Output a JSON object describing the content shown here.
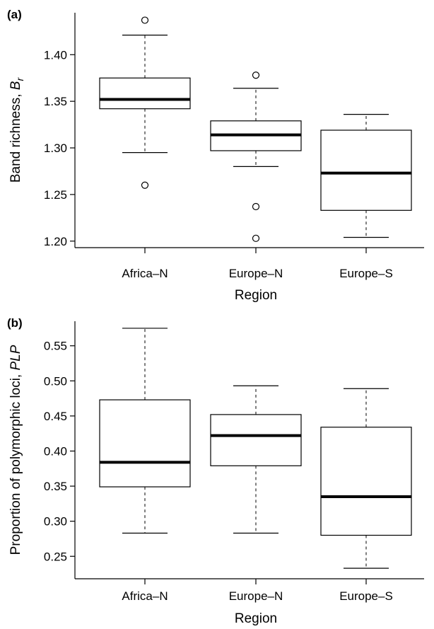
{
  "chart_data": [
    {
      "panel_label": "(a)",
      "type": "boxplot",
      "xlabel": "Region",
      "ylabel": "Band richness, ",
      "ylabel_symbol": "B",
      "ylabel_subscript": "r",
      "categories": [
        "Africa–N",
        "Europe–N",
        "Europe–S"
      ],
      "ylim": [
        1.193,
        1.445
      ],
      "yticks": [
        1.2,
        1.25,
        1.3,
        1.35,
        1.4
      ],
      "ytick_labels": [
        "1.20",
        "1.25",
        "1.30",
        "1.35",
        "1.40"
      ],
      "boxes": [
        {
          "category": "Africa–N",
          "whisker_low": 1.295,
          "q1": 1.342,
          "median": 1.352,
          "q3": 1.375,
          "whisker_high": 1.421,
          "outliers": [
            1.437,
            1.26
          ]
        },
        {
          "category": "Europe–N",
          "whisker_low": 1.28,
          "q1": 1.297,
          "median": 1.314,
          "q3": 1.329,
          "whisker_high": 1.364,
          "outliers": [
            1.378,
            1.237,
            1.203
          ]
        },
        {
          "category": "Europe–S",
          "whisker_low": 1.204,
          "q1": 1.233,
          "median": 1.273,
          "q3": 1.319,
          "whisker_high": 1.336,
          "outliers": []
        }
      ],
      "grid": false
    },
    {
      "panel_label": "(b)",
      "type": "boxplot",
      "xlabel": "Region",
      "ylabel": "Proportion of polymorphic loci, ",
      "ylabel_symbol": "PLP",
      "ylabel_subscript": "",
      "categories": [
        "Africa–N",
        "Europe–N",
        "Europe–S"
      ],
      "ylim": [
        0.218,
        0.585
      ],
      "yticks": [
        0.25,
        0.3,
        0.35,
        0.4,
        0.45,
        0.5,
        0.55
      ],
      "ytick_labels": [
        "0.25",
        "0.30",
        "0.35",
        "0.40",
        "0.45",
        "0.50",
        "0.55"
      ],
      "boxes": [
        {
          "category": "Africa–N",
          "whisker_low": 0.283,
          "q1": 0.349,
          "median": 0.384,
          "q3": 0.473,
          "whisker_high": 0.575,
          "outliers": []
        },
        {
          "category": "Europe–N",
          "whisker_low": 0.283,
          "q1": 0.379,
          "median": 0.422,
          "q3": 0.452,
          "whisker_high": 0.493,
          "outliers": []
        },
        {
          "category": "Europe–S",
          "whisker_low": 0.233,
          "q1": 0.28,
          "median": 0.335,
          "q3": 0.434,
          "whisker_high": 0.489,
          "outliers": []
        }
      ],
      "grid": false
    }
  ]
}
